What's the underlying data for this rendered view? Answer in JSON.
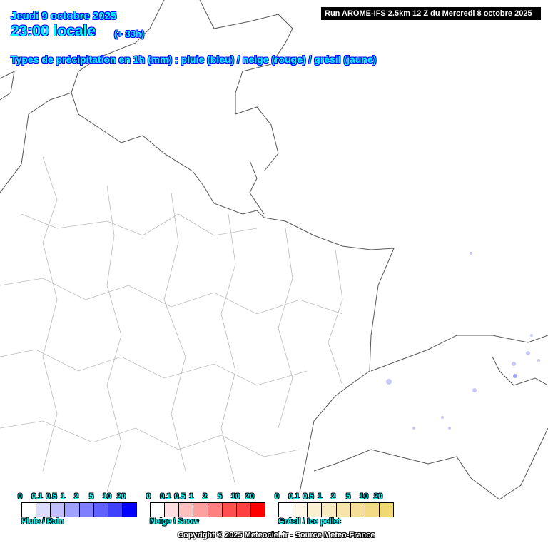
{
  "header": {
    "date": "Jeudi 9 octobre 2025",
    "time": "23:00 locale",
    "lead": "(+ 33h)",
    "subtitle": "Types de précipitation en 1h (mm) : pluie (bleu) / neige (rouge) / grésil (jaune)",
    "run": "Run AROME-IFS 2.5km 12 Z du Mercredi 8 octobre 2025"
  },
  "legend": {
    "ticks": [
      "0",
      "0.1",
      "0.5",
      "1",
      "2",
      "5",
      "10",
      "20"
    ],
    "rain": {
      "label": "Pluie / Rain",
      "colors": [
        "#ffffff",
        "#dcdcff",
        "#c0c0ff",
        "#a0a0ff",
        "#8080ff",
        "#6060ff",
        "#4040ff",
        "#0000ff"
      ]
    },
    "snow": {
      "label": "Neige / Snow",
      "colors": [
        "#ffffff",
        "#ffdde0",
        "#ffc0c0",
        "#ffa0a0",
        "#ff8080",
        "#ff5050",
        "#ff4040",
        "#ff0000"
      ]
    },
    "sleet": {
      "label": "Grésil / Ice pellet",
      "colors": [
        "#ffffff",
        "#fdf8e8",
        "#fbf0d0",
        "#f9ebc0",
        "#f7e4a8",
        "#f5df98",
        "#f3da85",
        "#f2d870"
      ]
    }
  },
  "copyright": "Copyright © 2025 Meteociel.fr - Source Meteo-France"
}
